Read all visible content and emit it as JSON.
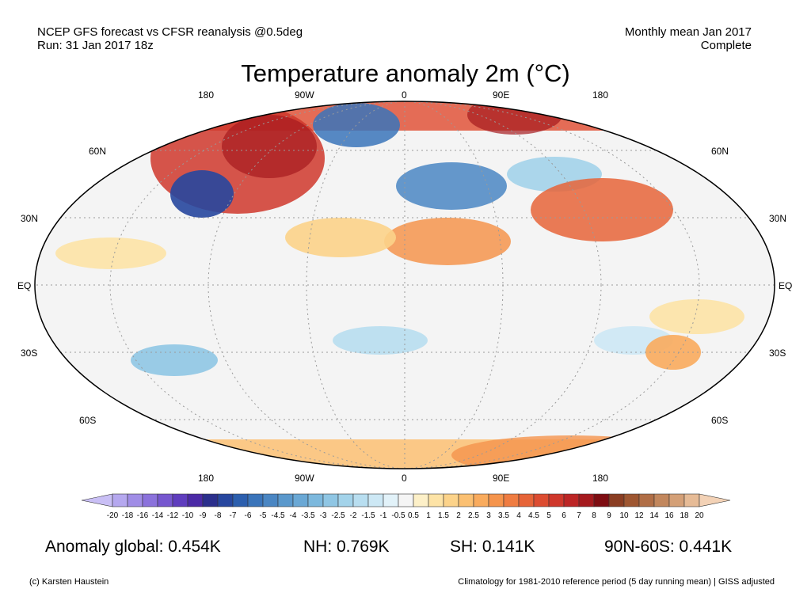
{
  "header": {
    "left_line1": "NCEP GFS forecast vs CFSR reanalysis @0.5deg",
    "left_line2": "Run: 31 Jan 2017 18z",
    "right_line1": "Monthly mean Jan 2017",
    "right_line2": "Complete"
  },
  "title": "Temperature anomaly 2m (°C)",
  "map": {
    "lon_labels": [
      "180",
      "90W",
      "0",
      "90E",
      "180"
    ],
    "lat_labels_left": [
      "60N",
      "30N",
      "EQ",
      "30S",
      "60S"
    ],
    "lat_labels_right": [
      "60N",
      "30N",
      "EQ",
      "30S",
      "60S"
    ]
  },
  "colorbar": {
    "labels": [
      "-20",
      "-18",
      "-16",
      "-14",
      "-12",
      "-10",
      "-9",
      "-8",
      "-7",
      "-6",
      "-5",
      "-4.5",
      "-4",
      "-3.5",
      "-3",
      "-2.5",
      "-2",
      "-1.5",
      "-1",
      "-0.5",
      "0.5",
      "1",
      "1.5",
      "2",
      "2.5",
      "3",
      "3.5",
      "4",
      "4.5",
      "5",
      "6",
      "7",
      "8",
      "9",
      "10",
      "12",
      "14",
      "16",
      "18",
      "20"
    ],
    "colors": [
      "#c9bff5",
      "#b5a8ef",
      "#a08de6",
      "#8b72dc",
      "#7657cf",
      "#5f3dbe",
      "#4b2aa6",
      "#2b2f8c",
      "#27479f",
      "#2c5fae",
      "#3a74ba",
      "#4a86c3",
      "#5a98cc",
      "#6aa8d5",
      "#7cb8dd",
      "#8fc6e4",
      "#a3d3ea",
      "#b8def0",
      "#cde8f5",
      "#e2f2f9",
      "#f5f5f5",
      "#fdf0c8",
      "#fde3a6",
      "#fcd38a",
      "#fbc072",
      "#f9ab5d",
      "#f5944c",
      "#ef7c41",
      "#e66438",
      "#dc4c31",
      "#cf372b",
      "#bc2525",
      "#a51a1e",
      "#7e0d12",
      "#8a3d22",
      "#9e5631",
      "#b06e46",
      "#c2875d",
      "#d4a077",
      "#e6bb96",
      "#f3d2b6"
    ],
    "accent_warm": "#c9302c",
    "accent_cold": "#2f5fae"
  },
  "stats": {
    "global": "Anomaly global: 0.454K",
    "nh": "NH: 0.769K",
    "sh": "SH: 0.141K",
    "arctic": "90N-60S: 0.441K"
  },
  "footer": {
    "left": "(c) Karsten Haustein",
    "right": "Climatology for 1981-2010 reference period (5 day running mean) | GISS adjusted"
  }
}
